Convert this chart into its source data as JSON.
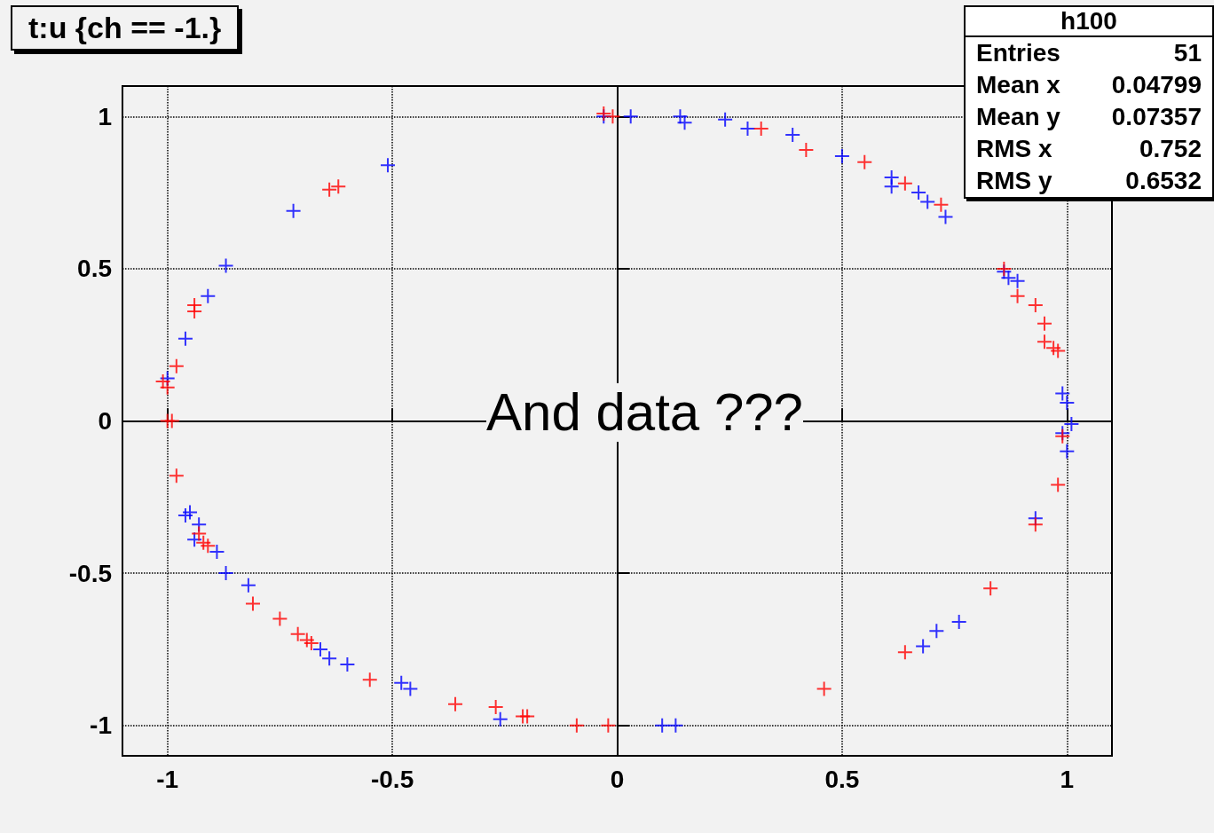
{
  "chart_data": {
    "type": "scatter",
    "title": "t:u {ch == -1.}",
    "annotations": [
      "And data ???",
      "h100",
      "Entries",
      "51",
      "Mean x",
      "0.04799",
      "Mean y",
      "0.07357",
      "RMS x",
      "0.752",
      "RMS y",
      "0.6532"
    ],
    "xlim": [
      -1.1,
      1.1
    ],
    "ylim": [
      -1.1,
      1.1
    ],
    "xticks": [
      -1,
      -0.5,
      0,
      0.5,
      1
    ],
    "yticks": [
      -1,
      -0.5,
      0,
      0.5,
      1
    ],
    "grid": true,
    "marker": "cross",
    "series": [
      {
        "color": "#0000ff",
        "x": [
          -0.03,
          0.03,
          0.14,
          0.15,
          0.24,
          0.29,
          0.39,
          0.5,
          0.61,
          0.61,
          0.67,
          0.69,
          0.73,
          0.86,
          0.87,
          0.89,
          0.99,
          1.0,
          1.01,
          0.99,
          1.0,
          0.93,
          0.76,
          0.71,
          0.68,
          0.13,
          0.1,
          -0.26,
          -0.46,
          -0.48,
          -0.6,
          -0.64,
          -0.66,
          -0.82,
          -0.87,
          -0.89,
          -0.93,
          -0.94,
          -0.95,
          -0.96,
          -0.96,
          -0.91,
          -0.87,
          -1.0,
          -0.72,
          -0.51
        ],
        "values": [
          1.0,
          1.0,
          1.0,
          0.98,
          0.99,
          0.96,
          0.94,
          0.87,
          0.8,
          0.77,
          0.75,
          0.72,
          0.67,
          0.49,
          0.47,
          0.46,
          0.09,
          0.06,
          -0.01,
          -0.04,
          -0.1,
          -0.32,
          -0.66,
          -0.69,
          -0.74,
          -1.0,
          -1.0,
          -0.98,
          -0.88,
          -0.86,
          -0.8,
          -0.78,
          -0.75,
          -0.54,
          -0.5,
          -0.43,
          -0.34,
          -0.39,
          -0.3,
          -0.31,
          0.27,
          0.41,
          0.51,
          0.14,
          0.69,
          0.84
        ]
      },
      {
        "color": "#ff0000",
        "x": [
          -0.03,
          -0.01,
          0.32,
          0.42,
          0.55,
          0.64,
          0.72,
          0.86,
          0.89,
          0.93,
          0.95,
          0.95,
          0.97,
          0.98,
          0.99,
          0.98,
          0.93,
          0.83,
          0.64,
          0.46,
          -0.02,
          -0.09,
          -0.2,
          -0.21,
          -0.27,
          -0.36,
          -0.55,
          -0.68,
          -0.69,
          -0.71,
          -0.75,
          -0.81,
          -0.91,
          -0.92,
          -0.93,
          -0.98,
          -0.99,
          -1.0,
          -1.0,
          -1.01,
          -0.98,
          -0.94,
          -0.94,
          -0.64,
          -0.62
        ],
        "values": [
          1.01,
          1.0,
          0.96,
          0.89,
          0.85,
          0.78,
          0.71,
          0.5,
          0.41,
          0.38,
          0.32,
          0.26,
          0.24,
          0.23,
          -0.05,
          -0.21,
          -0.34,
          -0.55,
          -0.76,
          -0.88,
          -1.0,
          -1.0,
          -0.97,
          -0.97,
          -0.94,
          -0.93,
          -0.85,
          -0.73,
          -0.72,
          -0.7,
          -0.65,
          -0.6,
          -0.41,
          -0.4,
          -0.37,
          -0.18,
          0,
          0,
          0.11,
          0.13,
          0.18,
          0.36,
          0.38,
          0.76,
          0.77
        ]
      }
    ]
  }
}
